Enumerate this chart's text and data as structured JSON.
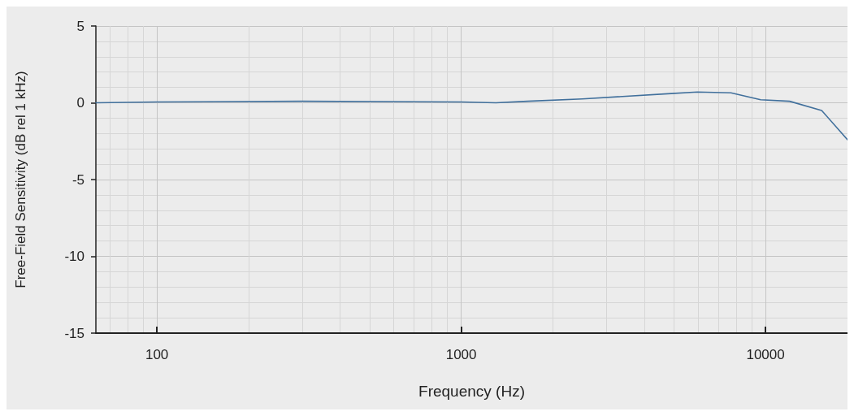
{
  "chart_data": {
    "type": "line",
    "xlabel": "Frequency (Hz)",
    "ylabel": "Free-Field Sensitivity (dB rel 1 kHz)",
    "log": "x",
    "xlim": [
      63,
      18600
    ],
    "ylim": [
      -15,
      5
    ],
    "xticks": [
      100,
      1000,
      10000
    ],
    "yticks": [
      -15,
      -10,
      -5,
      0,
      5
    ],
    "grid": true,
    "marker": "none",
    "line_style": "solid",
    "series": [
      {
        "color": "#41709c",
        "x": [
          63,
          100,
          300,
          1000,
          1300,
          1650,
          2500,
          4900,
          5970,
          7700,
          9640,
          12000,
          15300,
          18600
        ],
        "values": [
          0,
          0.05,
          0.1,
          0.05,
          0,
          0.1,
          0.25,
          0.6,
          0.7,
          0.65,
          0.2,
          0.1,
          -0.5,
          -2.4
        ]
      }
    ]
  }
}
